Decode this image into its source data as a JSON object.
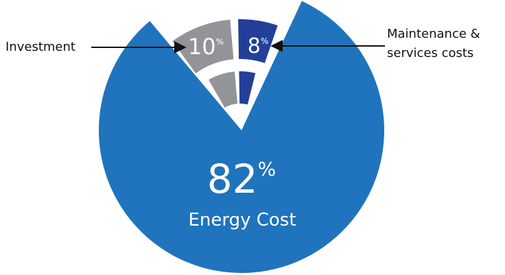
{
  "chart_data": {
    "type": "pie",
    "slices": [
      {
        "key": "investment",
        "value": 10,
        "value_label": "10",
        "pct_symbol": "%",
        "label": "Investment",
        "color": "#939497"
      },
      {
        "key": "maintenance",
        "value": 8,
        "value_label": "8",
        "pct_symbol": "%",
        "label_lines": [
          "Maintenance &",
          "services costs"
        ],
        "color": "#233f99"
      },
      {
        "key": "energy",
        "value": 82,
        "value_label": "82",
        "pct_symbol": "%",
        "label": "Energy Cost",
        "color": "#1f74bd"
      }
    ],
    "arrow_color": "#111111",
    "background": "#ffffff"
  }
}
